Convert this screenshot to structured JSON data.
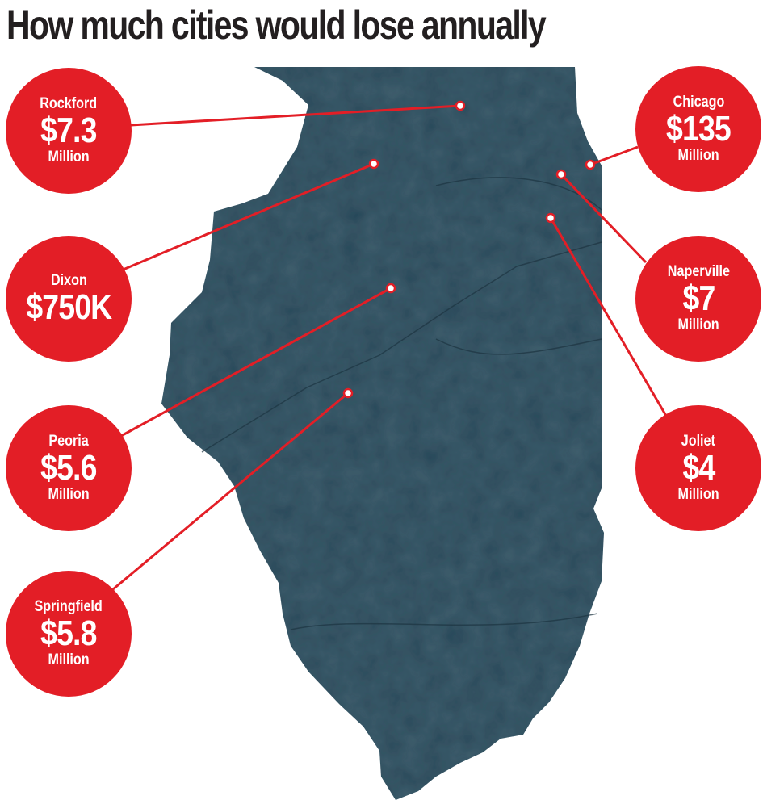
{
  "title": "How much cities would lose annually",
  "colors": {
    "circle": "#e31e26",
    "map": "#2b4a5a",
    "line": "#e31e26"
  },
  "cities": [
    {
      "name": "Rockford",
      "amount": "$7.3",
      "unit": "Million"
    },
    {
      "name": "Dixon",
      "amount": "$750K",
      "unit": ""
    },
    {
      "name": "Peoria",
      "amount": "$5.6",
      "unit": "Million"
    },
    {
      "name": "Springfield",
      "amount": "$5.8",
      "unit": "Million"
    },
    {
      "name": "Chicago",
      "amount": "$135",
      "unit": "Million"
    },
    {
      "name": "Naperville",
      "amount": "$7",
      "unit": "Million"
    },
    {
      "name": "Joliet",
      "amount": "$4",
      "unit": "Million"
    }
  ]
}
